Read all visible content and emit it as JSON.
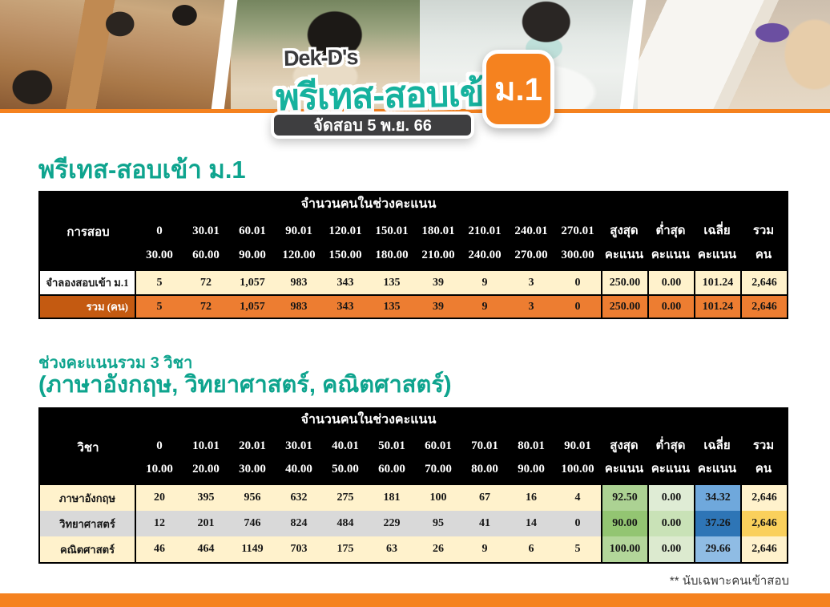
{
  "header": {
    "brand": "Dek-D's",
    "title": "พรีเทส-สอบเข้า",
    "level": "ม.1",
    "date": "จัดสอบ 5 พ.ย. 66"
  },
  "section1": {
    "heading": "พรีเทส-สอบเข้า ม.1",
    "table": {
      "group_header": "จำนวนคนในช่วงคะแนน",
      "col1_header": "การสอบ",
      "ranges": [
        {
          "from": "0",
          "to": "30.00"
        },
        {
          "from": "30.01",
          "to": "60.00"
        },
        {
          "from": "60.01",
          "to": "90.00"
        },
        {
          "from": "90.01",
          "to": "120.00"
        },
        {
          "from": "120.01",
          "to": "150.00"
        },
        {
          "from": "150.01",
          "to": "180.00"
        },
        {
          "from": "180.01",
          "to": "210.00"
        },
        {
          "from": "210.01",
          "to": "240.00"
        },
        {
          "from": "240.01",
          "to": "270.00"
        },
        {
          "from": "270.01",
          "to": "300.00"
        }
      ],
      "summaries": [
        {
          "line1": "สูงสุด",
          "line2": "คะแนน"
        },
        {
          "line1": "ต่ำสุด",
          "line2": "คะแนน"
        },
        {
          "line1": "เฉลี่ย",
          "line2": "คะแนน"
        },
        {
          "line1": "รวม",
          "line2": "คน"
        }
      ],
      "rows": [
        {
          "label": "จำลองสอบเข้า ม.1",
          "label_bg": "#FFFFFF",
          "label_color": "#161616",
          "bg": "#FFF2CC",
          "values": [
            "5",
            "72",
            "1,057",
            "983",
            "343",
            "135",
            "39",
            "9",
            "3",
            "0"
          ],
          "summary": [
            {
              "v": "250.00",
              "bg": "#FFF2CC"
            },
            {
              "v": "0.00",
              "bg": "#FFF2CC"
            },
            {
              "v": "101.24",
              "bg": "#FFF2CC"
            },
            {
              "v": "2,646",
              "bg": "#FFF2CC"
            }
          ]
        },
        {
          "label": "รวม (คน)",
          "label_bg": "#C45A11",
          "label_color": "#FFFFFF",
          "label_align": "right",
          "border_top": true,
          "bg": "#ED7D31",
          "values": [
            "5",
            "72",
            "1,057",
            "983",
            "343",
            "135",
            "39",
            "9",
            "3",
            "0"
          ],
          "summary": [
            {
              "v": "250.00",
              "bg": "#ED7D31"
            },
            {
              "v": "0.00",
              "bg": "#ED7D31"
            },
            {
              "v": "101.24",
              "bg": "#ED7D31"
            },
            {
              "v": "2,646",
              "bg": "#ED7D31"
            }
          ]
        }
      ]
    }
  },
  "section2": {
    "heading_line1": "ช่วงคะแนนรวม 3 วิชา",
    "heading_line2": "(ภาษาอังกฤษ, วิทยาศาสตร์, คณิตศาสตร์)",
    "table": {
      "group_header": "จำนวนคนในช่วงคะแนน",
      "col1_header": "วิชา",
      "ranges": [
        {
          "from": "0",
          "to": "10.00"
        },
        {
          "from": "10.01",
          "to": "20.00"
        },
        {
          "from": "20.01",
          "to": "30.00"
        },
        {
          "from": "30.01",
          "to": "40.00"
        },
        {
          "from": "40.01",
          "to": "50.00"
        },
        {
          "from": "50.01",
          "to": "60.00"
        },
        {
          "from": "60.01",
          "to": "70.00"
        },
        {
          "from": "70.01",
          "to": "80.00"
        },
        {
          "from": "80.01",
          "to": "90.00"
        },
        {
          "from": "90.01",
          "to": "100.00"
        }
      ],
      "summaries": [
        {
          "line1": "สูงสุด",
          "line2": "คะแนน"
        },
        {
          "line1": "ต่ำสุด",
          "line2": "คะแนน"
        },
        {
          "line1": "เฉลี่ย",
          "line2": "คะแนน"
        },
        {
          "line1": "รวม",
          "line2": "คน"
        }
      ],
      "rows": [
        {
          "label": "ภาษาอังกฤษ",
          "label_bg": "#FFF2CC",
          "label_color": "#161616",
          "bg": "#FFF2CC",
          "values": [
            "20",
            "395",
            "956",
            "632",
            "275",
            "181",
            "100",
            "67",
            "16",
            "4"
          ],
          "summary": [
            {
              "v": "92.50",
              "bg": "#ACD293"
            },
            {
              "v": "0.00",
              "bg": "#DFECD5"
            },
            {
              "v": "34.32",
              "bg": "#6FA8DC"
            },
            {
              "v": "2,646",
              "bg": "#FFF2CC"
            }
          ]
        },
        {
          "label": "วิทยาศาสตร์",
          "label_bg": "#D9D9D9",
          "label_color": "#161616",
          "bg": "#D9D9D9",
          "values": [
            "12",
            "201",
            "746",
            "824",
            "484",
            "229",
            "95",
            "41",
            "14",
            "0"
          ],
          "summary": [
            {
              "v": "90.00",
              "bg": "#93C572"
            },
            {
              "v": "0.00",
              "bg": "#C9E2B7"
            },
            {
              "v": "37.26",
              "bg": "#2E75B6"
            },
            {
              "v": "2,646",
              "bg": "#FAD05C"
            }
          ]
        },
        {
          "label": "คณิตศาสตร์",
          "label_bg": "#FFF2CC",
          "label_color": "#161616",
          "bg": "#FFF2CC",
          "values": [
            "46",
            "464",
            "1149",
            "703",
            "175",
            "63",
            "26",
            "9",
            "6",
            "5"
          ],
          "summary": [
            {
              "v": "100.00",
              "bg": "#B3D69A"
            },
            {
              "v": "0.00",
              "bg": "#DCEACF"
            },
            {
              "v": "29.66",
              "bg": "#8FBCE4"
            },
            {
              "v": "2,646",
              "bg": "#FFF2CC"
            }
          ]
        }
      ]
    }
  },
  "footnote": "** นับเฉพาะคนเข้าสอบ",
  "colors": {
    "accent_orange": "#F5821F",
    "teal": "#0EA48E",
    "table_header_bg": "#000000",
    "cream_row": "#FFF2CC",
    "gray_row": "#D9D9D9",
    "total_label_bg": "#C45A11",
    "total_row_bg": "#ED7D31",
    "max_green": "#A9D18E",
    "min_green": "#DFECD5",
    "avg_blue_light": "#8FBCE4",
    "avg_blue_dark": "#2E75B6",
    "total_amber": "#FAD05C",
    "logo_teal": "#16B29E",
    "logo_dark": "#3E3E40"
  }
}
